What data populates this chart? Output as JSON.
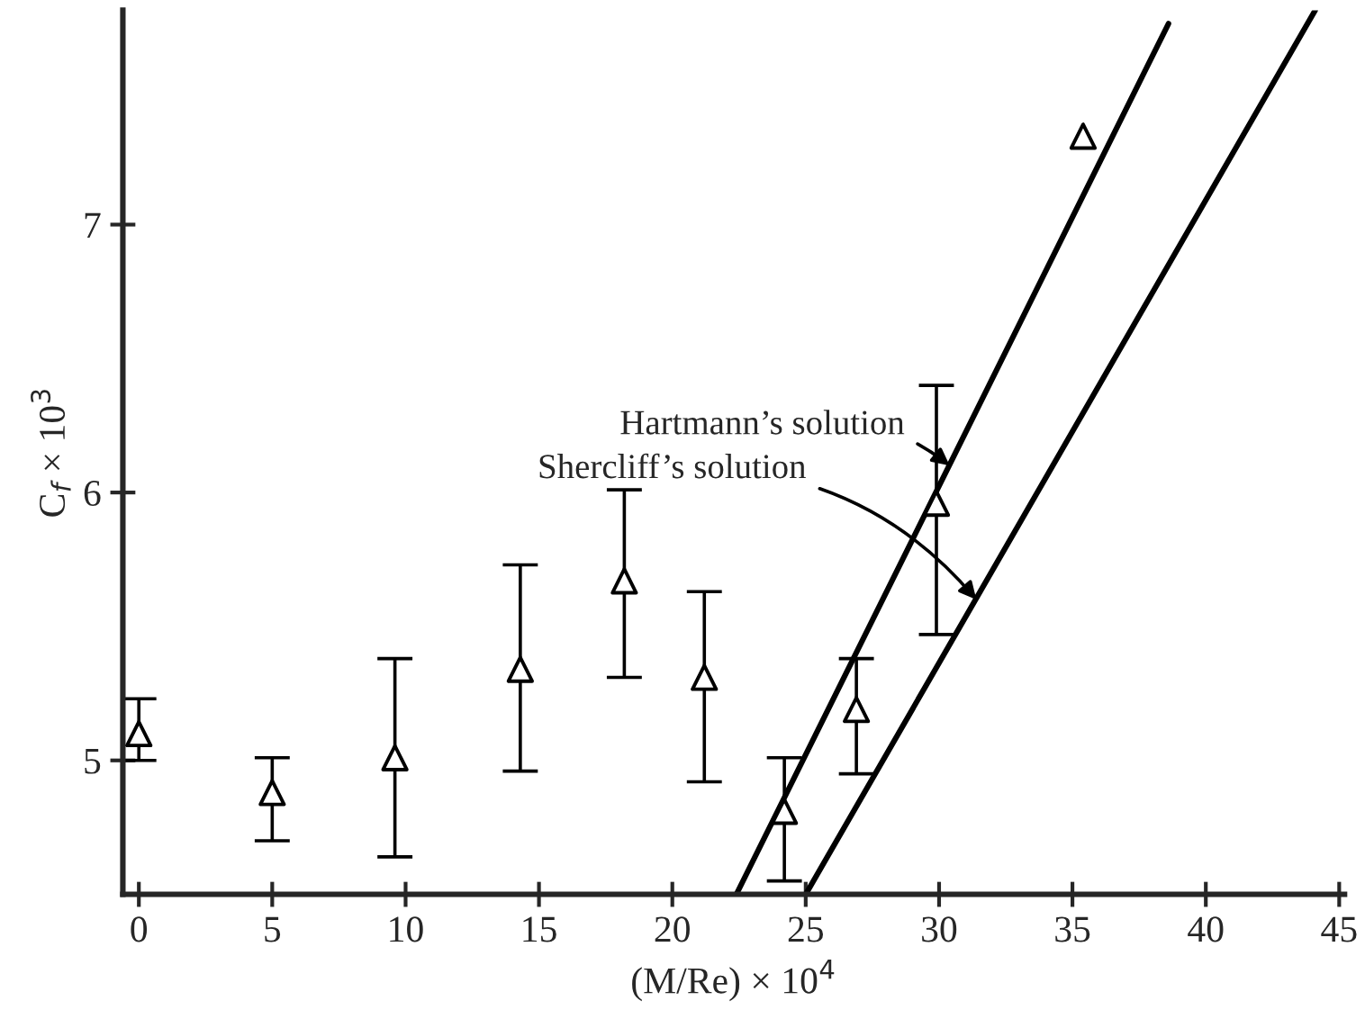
{
  "chart_data": {
    "type": "scatter",
    "xlabel": "(M/Re) × 10$^{4}$",
    "ylabel": "C$_{f}$ × 10$^{3}$",
    "xlim": [
      -0.6,
      45.2
    ],
    "xticks": [
      0,
      5,
      10,
      15,
      20,
      25,
      30,
      35,
      40,
      45
    ],
    "ylim": [
      4.5,
      7.8
    ],
    "yticks": [
      5,
      6,
      7
    ],
    "grid": false,
    "legend": false,
    "series": [
      {
        "color": "#000000",
        "marker": "triangle",
        "x": [
          0,
          5,
          9.6,
          14.3,
          18.2,
          21.2,
          24.2,
          26.9,
          29.9,
          35.4
        ],
        "values": [
          5.1,
          4.88,
          5.01,
          5.34,
          5.67,
          5.31,
          4.81,
          5.19,
          5.96,
          7.33
        ],
        "errors": [
          [
            5.0,
            5.23
          ],
          [
            4.7,
            5.01
          ],
          [
            4.64,
            5.38
          ],
          [
            4.96,
            5.73
          ],
          [
            5.31,
            6.01
          ],
          [
            4.92,
            5.63
          ],
          [
            4.55,
            5.01
          ],
          [
            4.95,
            5.38
          ],
          [
            5.47,
            6.4
          ],
          null
        ]
      },
      {
        "type": "line",
        "color": "#000000",
        "x": [
          22.4,
          38.6
        ],
        "values": [
          4.5,
          7.75
        ]
      },
      {
        "type": "line",
        "color": "#000000",
        "x": [
          25.0,
          44.1
        ],
        "values": [
          4.5,
          7.8
        ]
      }
    ],
    "annotations": [
      {
        "text": "Hartmann’s solution",
        "x": 30.4,
        "y": 6.1
      },
      {
        "text": "Shercliff’s solution",
        "x": 31.4,
        "y": 5.6
      }
    ]
  }
}
